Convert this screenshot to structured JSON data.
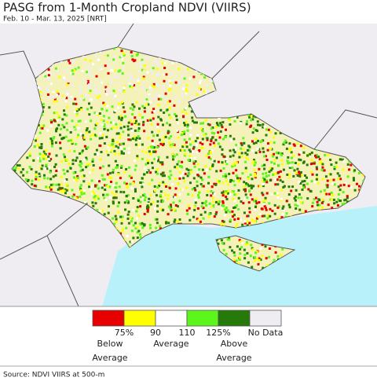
{
  "header": {
    "title": "PASG from 1-Month Cropland NDVI (VIIRS)",
    "subtitle": "Feb. 10 - Mar. 13, 2025 [NRT]"
  },
  "legend": {
    "colors": [
      "#e60000",
      "#ffff00",
      "#ffffff",
      "#5cf51c",
      "#267a0a",
      "#efedf1"
    ],
    "ticks": [
      "75%",
      "90",
      "110",
      "125%"
    ],
    "no_data": "No Data",
    "groups": [
      [
        "Below",
        "Average"
      ],
      [
        "Average"
      ],
      [
        "Above",
        "Average"
      ]
    ]
  },
  "footer": {
    "source": "Source: NDVI VIIRS at 500-m"
  }
}
